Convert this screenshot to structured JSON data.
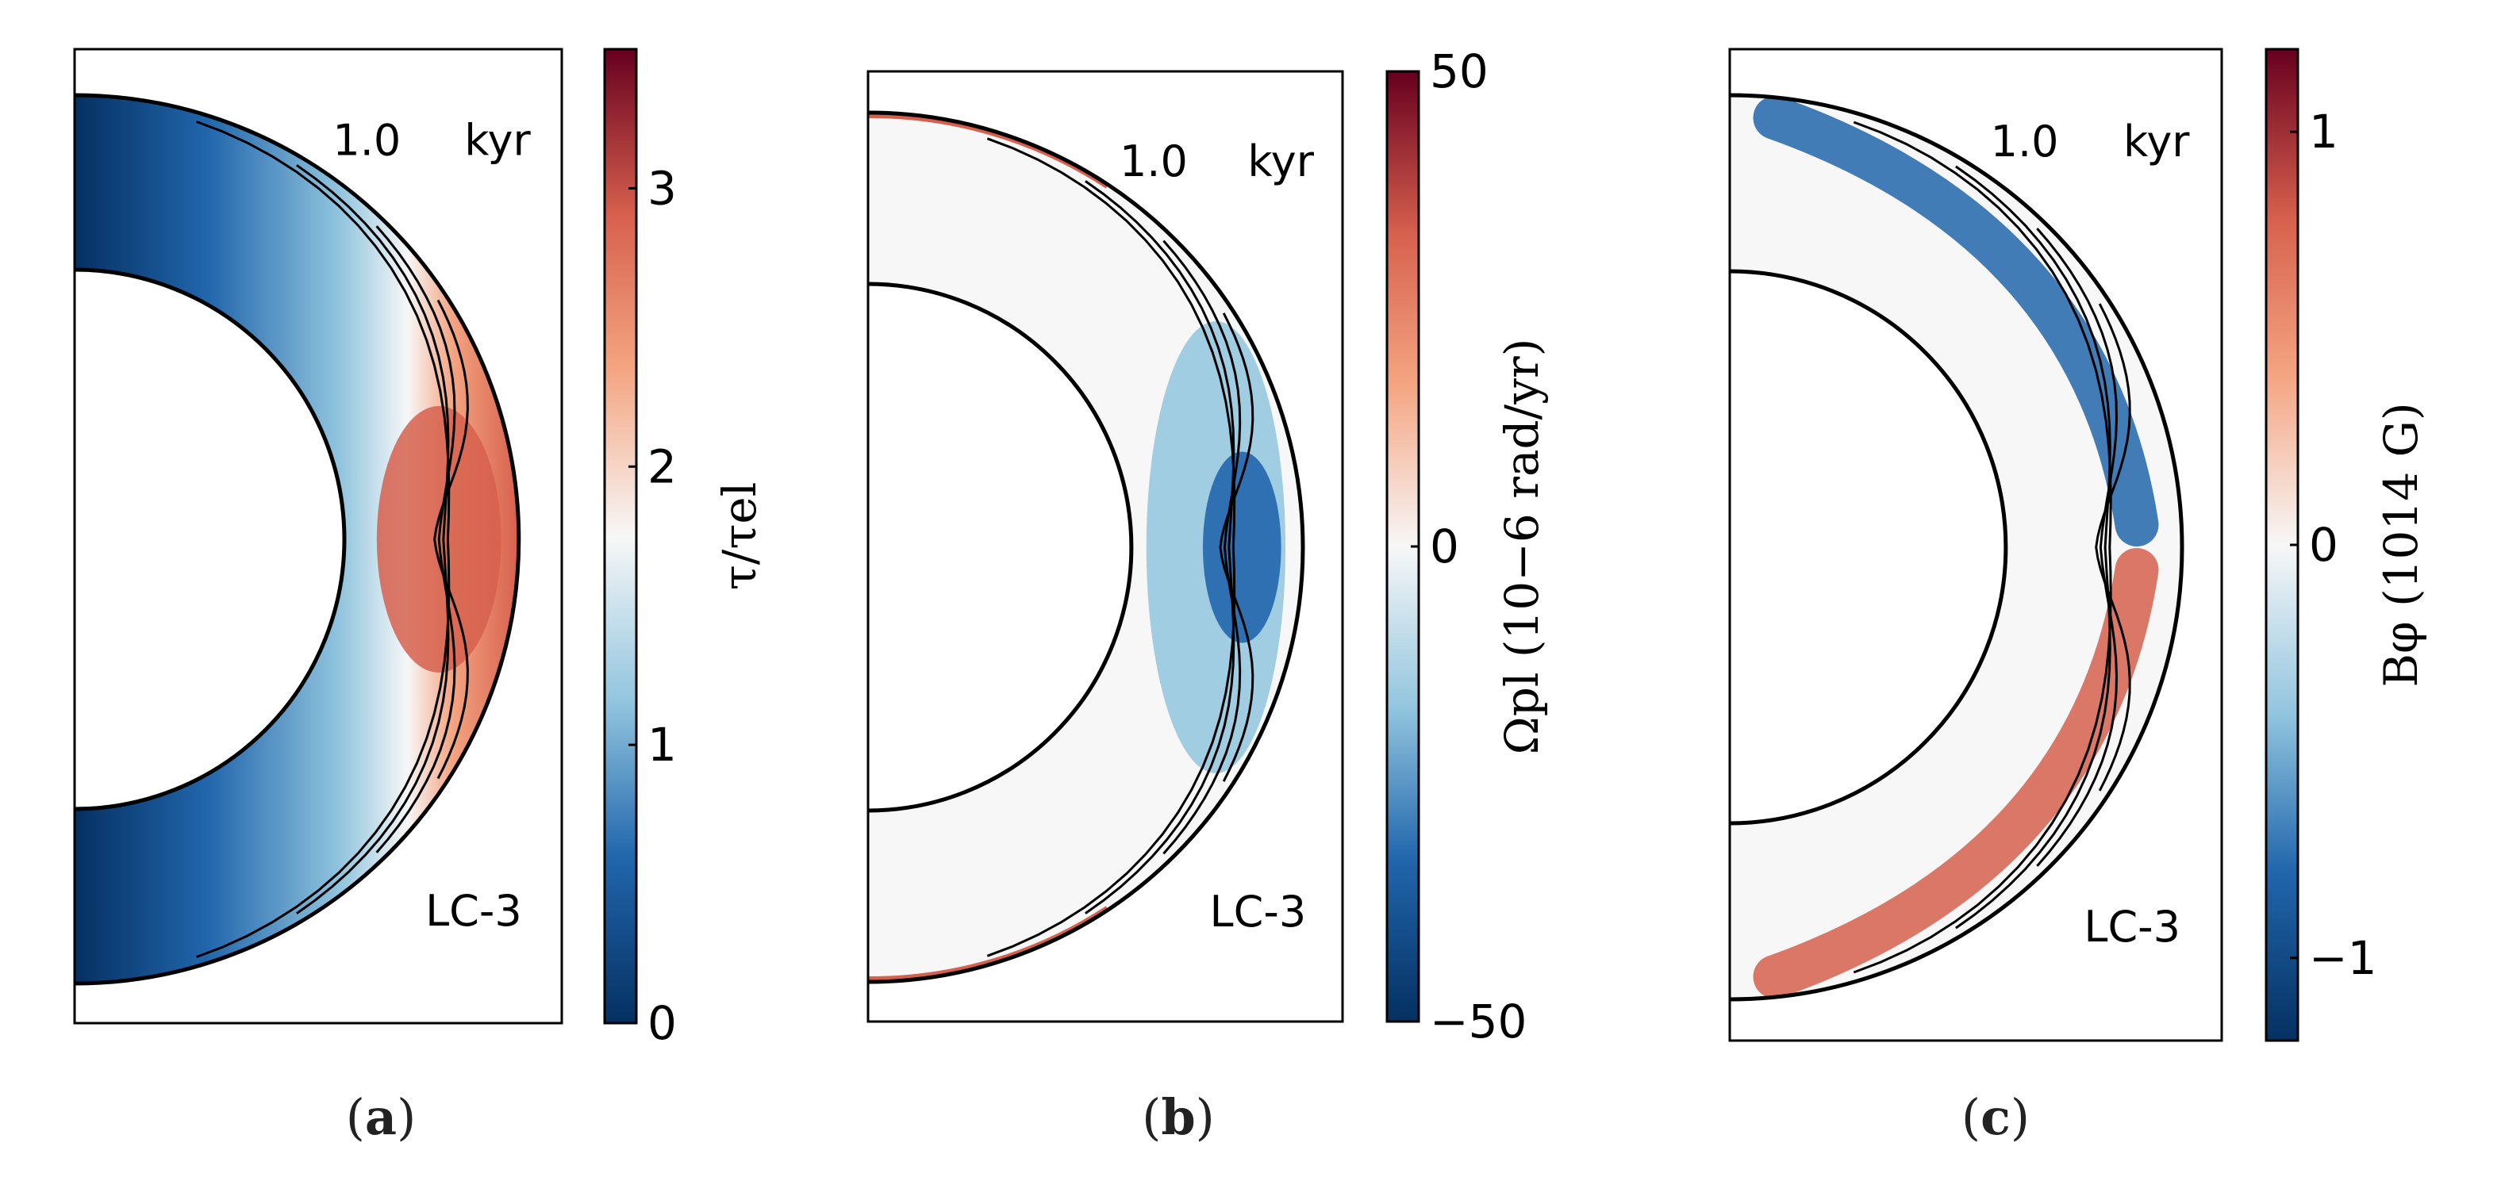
{
  "figure": {
    "colors": {
      "negative_strong": "#053061",
      "negative_mid": "#2166ac",
      "negative_light": "#92c5de",
      "neutral": "#f7f7f7",
      "positive_light": "#f4a582",
      "positive_mid": "#d6604d",
      "positive_strong": "#67001f",
      "ink": "#000000",
      "panel_background": "#f7f7f7"
    }
  },
  "chart_data": [
    {
      "type": "heatmap",
      "panel_label": "a",
      "time_label": "1.0",
      "time_unit": "kyr",
      "model_label": "LC-3",
      "colorbar": {
        "label_html": "τ/τ<tspan font-style='italic'>el</tspan>",
        "label_text": "τ/τel",
        "range": [
          0,
          3.5
        ],
        "ticks": [
          "0",
          "1",
          "2",
          "3"
        ],
        "tick_values": [
          0,
          1,
          2,
          3
        ],
        "colormap": "RdBu_r"
      },
      "domain": "meridional cross-section of neutron star crust (inner radius 0.62 of outer radius)",
      "field_description": "ratio of local timescale to electric timescale; low (~0) at poles, maximum ~2.5 at equator outer crust"
    },
    {
      "type": "heatmap",
      "panel_label": "b",
      "time_label": "1.0",
      "time_unit": "kyr",
      "model_label": "LC-3",
      "colorbar": {
        "label_text": "Ωpl (10−6 rad/yr)",
        "range": [
          -50,
          50
        ],
        "ticks": [
          "−50",
          "0",
          "50"
        ],
        "tick_values": [
          -50,
          0,
          50
        ],
        "colormap": "RdBu_r"
      },
      "field_description": "plastic angular velocity; mostly ~0, negative (~−20) band near equator outer crust, thin positive rim near poles"
    },
    {
      "type": "heatmap",
      "panel_label": "c",
      "time_label": "1.0",
      "time_unit": "kyr",
      "model_label": "LC-3",
      "colorbar": {
        "label_text": "Bφ (1014 G)",
        "range": [
          -1.2,
          1.2
        ],
        "ticks": [
          "−1",
          "0",
          "1"
        ],
        "tick_values": [
          -1,
          0,
          1
        ],
        "colormap": "RdBu_r"
      },
      "field_description": "toroidal magnetic field; negative (~−1) in northern hemisphere outer crust, positive (~+1) in southern hemisphere"
    }
  ]
}
